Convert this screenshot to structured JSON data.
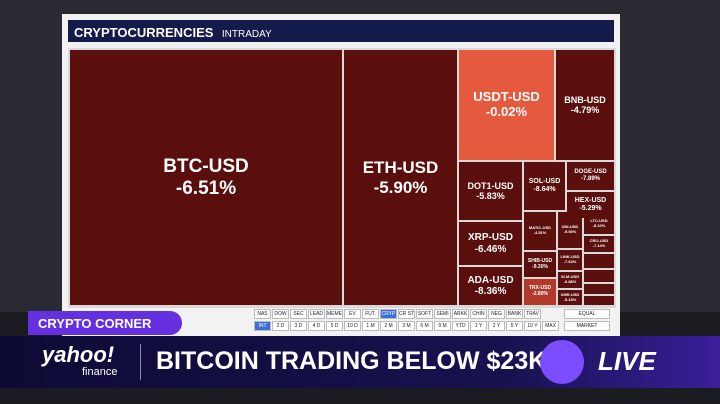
{
  "header": {
    "title": "CRYPTOCURRENCIES",
    "subtitle": "INTRADAY"
  },
  "tiles": [
    {
      "label": "BTC-USD",
      "change": "-6.51%"
    },
    {
      "label": "ETH-USD",
      "change": "-5.90%"
    },
    {
      "label": "USDT-USD",
      "change": "-0.02%"
    },
    {
      "label": "BNB-USD",
      "change": "-4.79%"
    },
    {
      "label": "DOT1-USD",
      "change": "-5.83%"
    },
    {
      "label": "SOL-USD",
      "change": "-8.64%"
    },
    {
      "label": "DOGE-USD",
      "change": "-7.89%"
    },
    {
      "label": "HEX-USD",
      "change": "-5.29%"
    },
    {
      "label": "XRP-USD",
      "change": "-6.46%"
    },
    {
      "label": "ADA-USD",
      "change": "-8.36%"
    },
    {
      "label": "MATIC-USD",
      "change": "-4.51%"
    },
    {
      "label": "UNI-USD",
      "change": "-5.93%"
    },
    {
      "label": "LTC-USD",
      "change": "-8.10%"
    },
    {
      "label": "CRO-USD",
      "change": "-7.14%"
    },
    {
      "label": "SHIB-USD",
      "change": "-9.30%"
    },
    {
      "label": "LINK-USD",
      "change": "-7.64%"
    },
    {
      "label": "XLM-USD",
      "change": "-6.88%"
    },
    {
      "label": "TRX-USD",
      "change": "-2.80%"
    },
    {
      "label": "XMR-USD",
      "change": "-5.15%"
    }
  ],
  "tabs": {
    "row1": [
      "NAS",
      "DOW",
      "SEC",
      "LEAD",
      "MEME",
      "EV",
      "FUT.",
      "CRYP",
      "CR ST",
      "SOFT",
      "SEMI",
      "ARKK",
      "CHIN",
      "NEG",
      "BANK",
      "TRAV"
    ],
    "row2": [
      "INT",
      "2 D",
      "3 D",
      "4 D",
      "5 D",
      "10 D",
      "1 M",
      "2 M",
      "3 M",
      "6 M",
      "9 M",
      "YTD",
      "1 Y",
      "2 Y",
      "5 Y",
      "10 Y",
      "MAX"
    ],
    "side": [
      "EQUAL",
      "MARKET"
    ]
  },
  "lower_third": {
    "tag": "CRYPTO CORNER",
    "logo": "yahoo!",
    "logo_sub": "finance",
    "headline": "BITCOIN TRADING BELOW $23K",
    "live": "LIVE"
  }
}
